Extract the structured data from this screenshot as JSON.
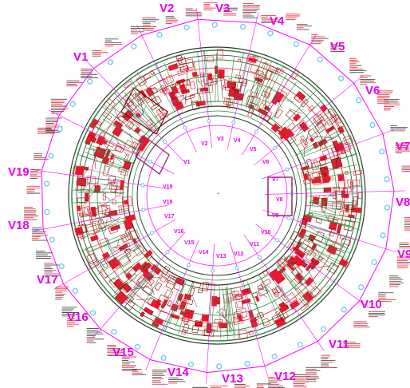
{
  "drawing": {
    "colors": {
      "background": "#ffffff",
      "zone_line": "#ff00ff",
      "zone_label": "#e600e6",
      "detail": "#e8192c",
      "detail_dark": "#8b0000",
      "structure": "#2e8b3a",
      "annotation": "#333333",
      "grid_bubble": "#63c6ee",
      "highlight_frame": "#a0307a"
    },
    "outer_labels": [
      "V1",
      "V2",
      "V3",
      "V4",
      "V5",
      "V6",
      "V7",
      "V8",
      "V9",
      "V10",
      "V11",
      "V12",
      "V13",
      "V14",
      "V15",
      "V16",
      "V17",
      "V18",
      "V19"
    ],
    "inner_labels": [
      "V1",
      "V2",
      "V3",
      "V4",
      "V5",
      "V6",
      "V7",
      "V8",
      "V9",
      "V10",
      "V11",
      "V12",
      "V13",
      "V14",
      "V15",
      "V16",
      "V17",
      "V18",
      "V19"
    ]
  }
}
